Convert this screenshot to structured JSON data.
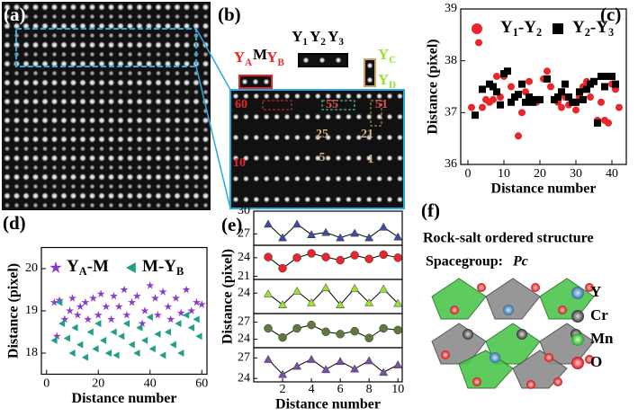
{
  "panel_labels": [
    "(a)",
    "(b)",
    "(c)",
    "(d)",
    "(e)",
    "(f)"
  ],
  "panel_b": {
    "atom_labels": [
      "YA",
      "M",
      "YB",
      "Y1",
      "Y2",
      "Y3",
      "YC",
      "YD"
    ],
    "numbers": [
      "60",
      "55",
      "51",
      "25",
      "21",
      "10",
      "5",
      "1"
    ]
  },
  "chart_data": [
    {
      "type": "scatter",
      "xlabel": "Distance number",
      "ylabel": "Distance (pixel)",
      "xlim": [
        -2,
        44
      ],
      "xticks": [
        0,
        10,
        20,
        30,
        40
      ],
      "ylim": [
        36,
        39
      ],
      "yticks": [
        36,
        37,
        38,
        39
      ],
      "series": [
        {
          "name": "Y1-Y2",
          "color": "#e8262b",
          "marker": "circle",
          "x": [
            1,
            3,
            4,
            5,
            6,
            7,
            8,
            9,
            10,
            12,
            13,
            14,
            15,
            16,
            17,
            19,
            20,
            21,
            22,
            23,
            25,
            26,
            27,
            28,
            29,
            30,
            31,
            32,
            33,
            34,
            36,
            37,
            38,
            39,
            40,
            41,
            42
          ],
          "values": [
            37.1,
            38.35,
            37.1,
            37.25,
            37.2,
            37.25,
            37.7,
            37.3,
            37.7,
            37.5,
            37.3,
            36.55,
            37.0,
            37.4,
            37.6,
            37.2,
            37.25,
            37.65,
            37.8,
            37.5,
            37.2,
            37.1,
            37.3,
            37.15,
            37.2,
            37.05,
            37.3,
            37.5,
            37.6,
            37.3,
            36.85,
            37.2,
            36.85,
            36.8,
            37.55,
            37.45,
            37.1
          ]
        },
        {
          "name": "Y2-Y3",
          "color": "#000000",
          "marker": "square",
          "x": [
            2,
            4,
            6,
            7,
            8,
            9,
            10,
            11,
            12,
            13,
            14,
            15,
            16,
            17,
            18,
            19,
            20,
            22,
            24,
            25,
            26,
            27,
            28,
            29,
            30,
            31,
            32,
            33,
            34,
            35,
            36,
            37,
            38,
            39,
            40,
            41
          ],
          "values": [
            36.95,
            37.45,
            37.55,
            37.5,
            37.4,
            37.15,
            37.75,
            37.8,
            37.2,
            37.3,
            37.35,
            37.55,
            37.2,
            37.3,
            37.2,
            37.25,
            37.25,
            37.65,
            37.25,
            37.3,
            37.4,
            37.55,
            37.3,
            37.2,
            37.2,
            37.4,
            37.25,
            37.45,
            37.55,
            37.6,
            36.8,
            37.7,
            37.5,
            37.7,
            37.7,
            37.55
          ]
        }
      ]
    },
    {
      "type": "scatter",
      "xlabel": "Distance number",
      "ylabel": "Distance (pixel)",
      "xlim": [
        -2,
        62
      ],
      "xticks": [
        0,
        20,
        40,
        60
      ],
      "ylim": [
        17.5,
        20.5
      ],
      "yticks": [
        18,
        19,
        20
      ],
      "series": [
        {
          "name": "YA-M",
          "color": "#8a3cc8",
          "marker": "star",
          "x": [
            3,
            4,
            5,
            7,
            9,
            10,
            12,
            13,
            15,
            16,
            18,
            20,
            21,
            23,
            25,
            26,
            28,
            30,
            31,
            33,
            35,
            37,
            38,
            40,
            42,
            43,
            45,
            47,
            48,
            50,
            52,
            54,
            56,
            58,
            60
          ],
          "values": [
            19.2,
            18.4,
            19.25,
            18.8,
            19.0,
            19.3,
            18.9,
            19.1,
            19.2,
            18.8,
            19.3,
            18.9,
            19.4,
            19.1,
            18.8,
            19.35,
            19.1,
            19.5,
            18.9,
            19.2,
            19.35,
            18.7,
            19.0,
            19.6,
            19.3,
            18.9,
            19.45,
            19.1,
            18.8,
            19.3,
            18.95,
            19.5,
            19.0,
            19.2,
            19.15
          ]
        },
        {
          "name": "M-YB",
          "color": "#1f9e89",
          "marker": "triangle-left",
          "x": [
            3,
            5,
            6,
            8,
            10,
            11,
            13,
            15,
            17,
            19,
            20,
            22,
            24,
            26,
            27,
            29,
            31,
            33,
            35,
            36,
            38,
            40,
            41,
            43,
            45,
            47,
            49,
            51,
            52,
            54,
            56,
            58,
            59
          ],
          "values": [
            18.3,
            19.2,
            18.7,
            18.35,
            18.0,
            18.6,
            18.2,
            17.9,
            18.5,
            18.1,
            18.7,
            18.3,
            18.0,
            18.5,
            17.95,
            18.4,
            18.7,
            18.2,
            18.0,
            18.6,
            18.3,
            18.85,
            18.1,
            18.45,
            17.95,
            18.5,
            18.2,
            18.7,
            18.0,
            18.9,
            18.6,
            18.8,
            18.4
          ]
        }
      ]
    },
    {
      "type": "line",
      "xlabel": "Distance number",
      "ylabel": "Distance (pixel)",
      "x": [
        1,
        2,
        3,
        4,
        5,
        6,
        7,
        8,
        9,
        10
      ],
      "xlim": [
        0,
        10.3
      ],
      "xticks": [
        2,
        4,
        6,
        8,
        10
      ],
      "series": [
        {
          "color": "#3b4fa0",
          "marker": "triangle",
          "ylim": [
            25.5,
            30
          ],
          "yticks": [
            30,
            27
          ],
          "values": [
            28.3,
            26.5,
            28.3,
            26.9,
            27.2,
            26.5,
            27.1,
            26.5,
            27.9,
            26.6
          ]
        },
        {
          "color": "#e8262b",
          "marker": "circle",
          "ylim": [
            20.5,
            26
          ],
          "yticks": [
            24,
            21
          ],
          "values": [
            24.1,
            22.3,
            24.0,
            24.7,
            24.1,
            23.6,
            24.4,
            23.8,
            24.5,
            24.0
          ]
        },
        {
          "color": "#9be03a",
          "marker": "triangle",
          "ylim": [
            21,
            26
          ],
          "yticks": [
            24
          ],
          "values": [
            23.9,
            22.3,
            24.3,
            22.6,
            24.8,
            22.3,
            24.7,
            22.6,
            24.6,
            22.5
          ]
        },
        {
          "color": "#5e7a3a",
          "marker": "circle",
          "ylim": [
            22.5,
            28.5
          ],
          "yticks": [
            27,
            24
          ],
          "values": [
            25.9,
            24.3,
            25.9,
            26.5,
            25.3,
            24.9,
            25.4,
            24.2,
            25.9,
            25.6
          ]
        },
        {
          "color": "#7a4fa6",
          "marker": "triangle",
          "ylim": [
            23.5,
            28.5
          ],
          "yticks": [
            27,
            24
          ],
          "values": [
            26.8,
            24.6,
            25.8,
            26.8,
            25.3,
            26.5,
            25.4,
            26.6,
            24.9,
            26.0
          ]
        }
      ]
    }
  ],
  "panel_f": {
    "title": "Rock-salt ordered structure",
    "spacegroup_label": "Spacegroup: ",
    "spacegroup": "Pc",
    "legend": [
      "Y",
      "Cr",
      "Mn",
      "O"
    ]
  }
}
